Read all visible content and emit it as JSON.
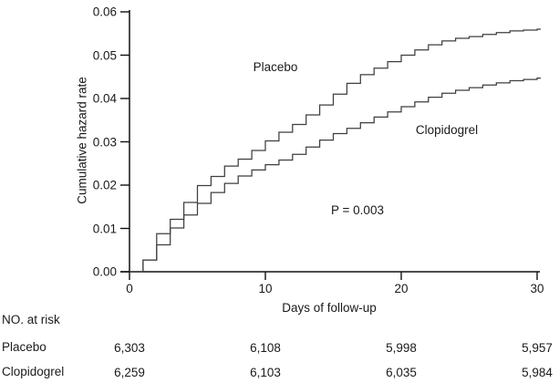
{
  "figure": {
    "p_value_label": "P = 0.003",
    "risk_table": {
      "heading": "NO. at risk",
      "rows": [
        {
          "label": "Placebo",
          "values": [
            "6,303",
            "6,108",
            "5,998",
            "5,957"
          ]
        },
        {
          "label": "Clopidogrel",
          "values": [
            "6,259",
            "6,103",
            "6,035",
            "5,984"
          ]
        }
      ]
    }
  },
  "chart_data": {
    "type": "line",
    "subtype": "step",
    "title": "",
    "xlabel": "Days of follow-up",
    "ylabel": "Cumulative hazard rate",
    "xlim": [
      0,
      30
    ],
    "ylim": [
      0,
      0.06
    ],
    "x_ticks": [
      0,
      10,
      20,
      30
    ],
    "y_tick_labels": [
      "0.00",
      "0.01",
      "0.02",
      "0.03",
      "0.04",
      "0.05",
      "0.06"
    ],
    "y_tick_values": [
      0,
      0.01,
      0.02,
      0.03,
      0.04,
      0.05,
      0.06
    ],
    "grid": false,
    "legend_position": "inline-curve-labels",
    "annotations": [
      {
        "text": "P = 0.003",
        "x": 17,
        "y": 0.014
      }
    ],
    "series": [
      {
        "name": "Placebo",
        "label_anchor": {
          "x": 10.7,
          "y": 0.047
        },
        "x": [
          0,
          1,
          2,
          3,
          4,
          5,
          6,
          7,
          8,
          9,
          10,
          11,
          12,
          13,
          14,
          15,
          16,
          17,
          18,
          19,
          20,
          21,
          22,
          23,
          24,
          25,
          26,
          27,
          28,
          29,
          30
        ],
        "y": [
          0,
          0.0027,
          0.0088,
          0.0121,
          0.016,
          0.0199,
          0.022,
          0.0244,
          0.026,
          0.028,
          0.0302,
          0.0322,
          0.034,
          0.0362,
          0.0385,
          0.041,
          0.0435,
          0.0455,
          0.047,
          0.0485,
          0.05,
          0.0512,
          0.0524,
          0.0533,
          0.0539,
          0.0543,
          0.0548,
          0.0552,
          0.0556,
          0.0558,
          0.056
        ]
      },
      {
        "name": "Clopidogrel",
        "label_anchor": {
          "x": 23.3,
          "y": 0.0325
        },
        "x": [
          0,
          1,
          2,
          3,
          4,
          5,
          6,
          7,
          8,
          9,
          10,
          11,
          12,
          13,
          14,
          15,
          16,
          17,
          18,
          19,
          20,
          21,
          22,
          23,
          24,
          25,
          26,
          27,
          28,
          29,
          30
        ],
        "y": [
          0,
          0.0027,
          0.0062,
          0.0101,
          0.0131,
          0.0158,
          0.0183,
          0.0204,
          0.0221,
          0.0235,
          0.0247,
          0.0258,
          0.0271,
          0.0288,
          0.0304,
          0.0319,
          0.0331,
          0.0344,
          0.0357,
          0.0369,
          0.0381,
          0.0392,
          0.0403,
          0.0412,
          0.0419,
          0.0425,
          0.0431,
          0.0436,
          0.0441,
          0.0444,
          0.0447
        ]
      }
    ],
    "colors": {
      "curve": "#3f3f3f",
      "axis": "#111111",
      "text": "#1a1a1a",
      "background": "#ffffff"
    }
  }
}
